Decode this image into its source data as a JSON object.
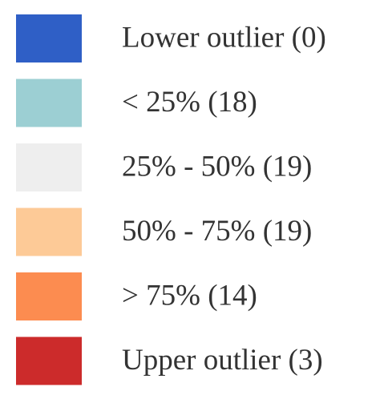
{
  "legend": {
    "items": [
      {
        "label": "Lower outlier (0)",
        "color": "#2f5fc6"
      },
      {
        "label": "< 25% (18)",
        "color": "#9ccfd3"
      },
      {
        "label": "25% - 50% (19)",
        "color": "#eeeeee"
      },
      {
        "label": "50% - 75% (19)",
        "color": "#fdca97"
      },
      {
        "label": "> 75% (14)",
        "color": "#fc8c50"
      },
      {
        "label": "Upper outlier (3)",
        "color": "#cc2b2b"
      }
    ]
  }
}
